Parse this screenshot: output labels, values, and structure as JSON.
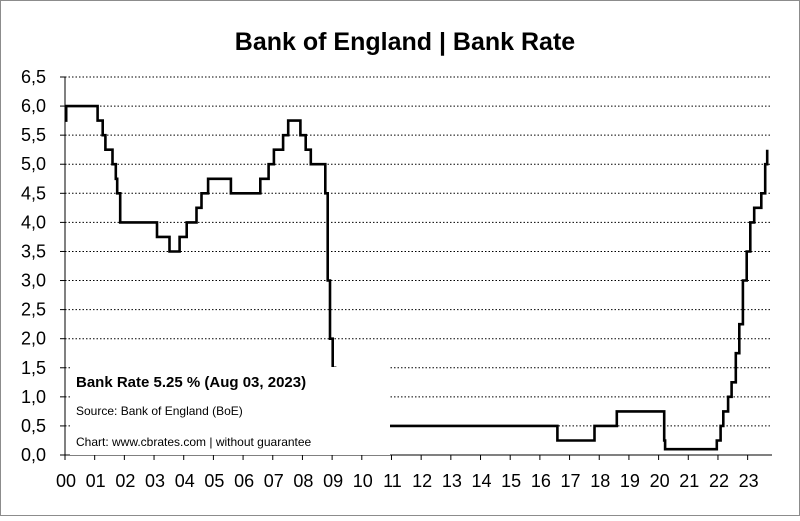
{
  "chart_data": {
    "type": "line",
    "title": "Bank of England | Bank Rate",
    "xlabel": "",
    "ylabel": "",
    "ylim": [
      0,
      6.5
    ],
    "xlim": [
      2000,
      2023.7
    ],
    "grid": true,
    "yticks": [
      "0,0",
      "0,5",
      "1,0",
      "1,5",
      "2,0",
      "2,5",
      "3,0",
      "3,5",
      "4,0",
      "4,5",
      "5,0",
      "5,5",
      "6,0",
      "6,5"
    ],
    "xticks": [
      "00",
      "01",
      "02",
      "03",
      "04",
      "05",
      "06",
      "07",
      "08",
      "09",
      "10",
      "11",
      "12",
      "13",
      "14",
      "15",
      "16",
      "17",
      "18",
      "19",
      "20",
      "21",
      "22",
      "23"
    ],
    "annotations": {
      "latest": "Bank Rate 5.25 % (Aug 03, 2023)",
      "source": "Source: Bank of England (BoE)",
      "credit": "Chart: www.cbrates.com  |  without guarantee"
    },
    "series": [
      {
        "color": "#000000",
        "steps": [
          [
            2000.0,
            5.75
          ],
          [
            2000.04,
            6.0
          ],
          [
            2001.1,
            5.75
          ],
          [
            2001.27,
            5.5
          ],
          [
            2001.36,
            5.25
          ],
          [
            2001.6,
            5.0
          ],
          [
            2001.71,
            4.75
          ],
          [
            2001.76,
            4.5
          ],
          [
            2001.86,
            4.0
          ],
          [
            2003.1,
            3.75
          ],
          [
            2003.52,
            3.5
          ],
          [
            2003.86,
            3.75
          ],
          [
            2004.1,
            4.0
          ],
          [
            2004.43,
            4.25
          ],
          [
            2004.6,
            4.5
          ],
          [
            2004.82,
            4.75
          ],
          [
            2005.59,
            4.5
          ],
          [
            2006.58,
            4.75
          ],
          [
            2006.86,
            5.0
          ],
          [
            2007.04,
            5.25
          ],
          [
            2007.35,
            5.5
          ],
          [
            2007.52,
            5.75
          ],
          [
            2007.93,
            5.5
          ],
          [
            2008.11,
            5.25
          ],
          [
            2008.28,
            5.0
          ],
          [
            2008.77,
            4.5
          ],
          [
            2008.85,
            3.0
          ],
          [
            2008.93,
            2.0
          ],
          [
            2009.02,
            1.5
          ],
          [
            2009.1,
            1.0
          ],
          [
            2009.18,
            0.5
          ],
          [
            2016.59,
            0.25
          ],
          [
            2017.84,
            0.5
          ],
          [
            2018.59,
            0.75
          ],
          [
            2020.19,
            0.25
          ],
          [
            2020.22,
            0.1
          ],
          [
            2021.96,
            0.25
          ],
          [
            2022.09,
            0.5
          ],
          [
            2022.18,
            0.75
          ],
          [
            2022.34,
            1.0
          ],
          [
            2022.46,
            1.25
          ],
          [
            2022.6,
            1.75
          ],
          [
            2022.72,
            2.25
          ],
          [
            2022.84,
            3.0
          ],
          [
            2022.97,
            3.5
          ],
          [
            2023.09,
            4.0
          ],
          [
            2023.22,
            4.25
          ],
          [
            2023.46,
            4.5
          ],
          [
            2023.59,
            5.0
          ],
          [
            2023.66,
            5.25
          ]
        ]
      }
    ]
  }
}
